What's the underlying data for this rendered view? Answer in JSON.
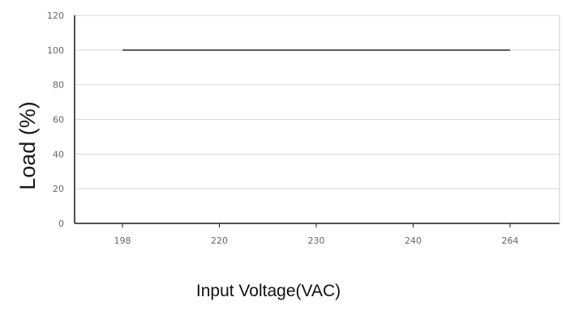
{
  "chart_data": {
    "type": "line",
    "categories": [
      "198",
      "220",
      "230",
      "240",
      "264"
    ],
    "series": [
      {
        "values": [
          100,
          100,
          100,
          100,
          100
        ]
      }
    ],
    "xlabel": "Input Voltage(VAC)",
    "ylabel": "Load (%)",
    "ylim": [
      0,
      120
    ],
    "yticks": [
      0,
      20,
      40,
      60,
      80,
      100,
      120
    ],
    "grid": true,
    "legend": "none",
    "colors": {
      "line": "#555555",
      "grid": "#d9d9d9",
      "axis": "#1a1a1a",
      "frame": "#cccccc"
    }
  }
}
